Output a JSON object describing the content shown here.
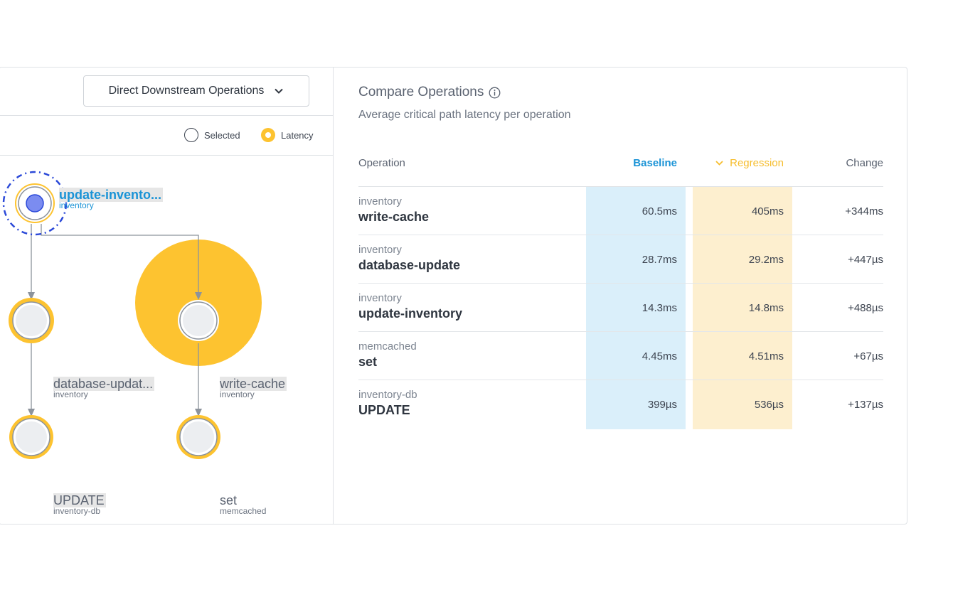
{
  "left": {
    "dropdown": {
      "label": "Direct Downstream Operations",
      "icon": "chevron-down-icon"
    },
    "legend": {
      "selected_label": "Selected",
      "latency_label": "Latency"
    },
    "nodes": [
      {
        "name": "update-invento...",
        "service": "inventory"
      },
      {
        "name": "database-updat...",
        "service": "inventory"
      },
      {
        "name": "write-cache",
        "service": "inventory"
      },
      {
        "name": "UPDATE",
        "service": "inventory-db"
      },
      {
        "name": "set",
        "service": "memcached"
      }
    ]
  },
  "compare": {
    "title": "Compare Operations",
    "info_icon": "info-icon",
    "subtitle": "Average critical path latency per operation",
    "columns": {
      "operation": "Operation",
      "baseline": "Baseline",
      "regression": "Regression",
      "change": "Change"
    },
    "rows": [
      {
        "service": "inventory",
        "operation": "write-cache",
        "baseline": "60.5ms",
        "regression": "405ms",
        "change": "+344ms"
      },
      {
        "service": "inventory",
        "operation": "database-update",
        "baseline": "28.7ms",
        "regression": "29.2ms",
        "change": "+447µs"
      },
      {
        "service": "inventory",
        "operation": "update-inventory",
        "baseline": "14.3ms",
        "regression": "14.8ms",
        "change": "+488µs"
      },
      {
        "service": "memcached",
        "operation": "set",
        "baseline": "4.45ms",
        "regression": "4.51ms",
        "change": "+67µs"
      },
      {
        "service": "inventory-db",
        "operation": "UPDATE",
        "baseline": "399µs",
        "regression": "536µs",
        "change": "+137µs"
      }
    ]
  },
  "colors": {
    "latency": "#fdc330",
    "selected": "#2b49d8",
    "baseline": "#1a93d6",
    "regression": "#f6bd2d"
  }
}
